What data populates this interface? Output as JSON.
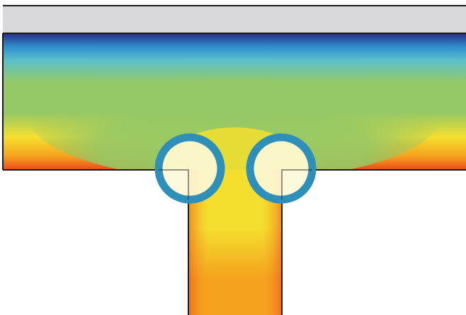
{
  "figure": {
    "colors": {
      "background": "#ffffff",
      "wall_fill": "#d9d9dc",
      "outline": "#1a1a1a",
      "marker_ring": "#2e8fb8",
      "marker_fill": "#fdf8d8",
      "field_top": "#2a2d86",
      "field_blue": "#2f8fd0",
      "field_cyan": "#5cc0c8",
      "field_green": "#95c866",
      "field_yellow": "#f4df2e",
      "field_orange": "#f5a21e",
      "field_red": "#ec4a1c"
    },
    "markers": [
      {
        "name": "left-corner-marker"
      },
      {
        "name": "right-corner-marker"
      }
    ]
  }
}
